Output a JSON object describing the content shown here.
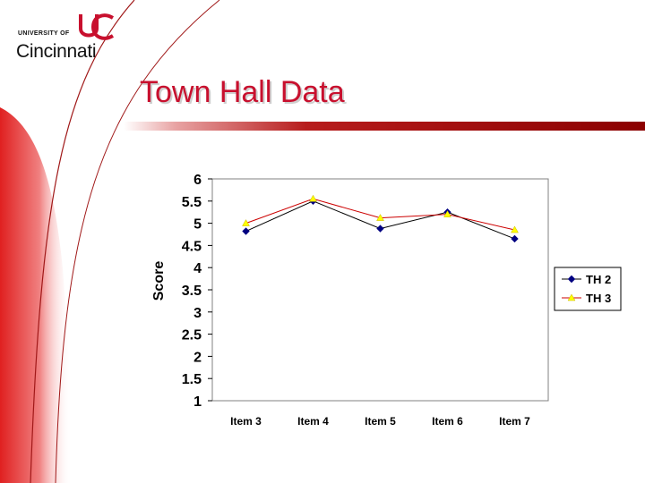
{
  "logo": {
    "small_text": "UNIVERSITY OF",
    "main_text": "Cincinnati",
    "brand_color": "#c8102e"
  },
  "slide": {
    "title": "Town Hall Data",
    "accent_color": "#c8102e"
  },
  "chart_data": {
    "type": "line",
    "title": "",
    "xlabel": "",
    "ylabel": "Score",
    "categories": [
      "Item 3",
      "Item 4",
      "Item 5",
      "Item 6",
      "Item 7"
    ],
    "y_ticks": [
      "6",
      "5.5",
      "5",
      "4.5",
      "4",
      "3.5",
      "3",
      "2.5",
      "2",
      "1.5",
      "1"
    ],
    "ylim": [
      1,
      6
    ],
    "grid": false,
    "legend_position": "right",
    "series": [
      {
        "name": "TH 2",
        "values": [
          4.82,
          5.5,
          4.88,
          5.25,
          4.65
        ],
        "line_color": "#000000",
        "marker_color": "#000080",
        "marker": "diamond"
      },
      {
        "name": "TH 3",
        "values": [
          5.0,
          5.55,
          5.12,
          5.2,
          4.85
        ],
        "line_color": "#cc0000",
        "marker_color": "#ffff00",
        "marker": "triangle"
      }
    ]
  }
}
